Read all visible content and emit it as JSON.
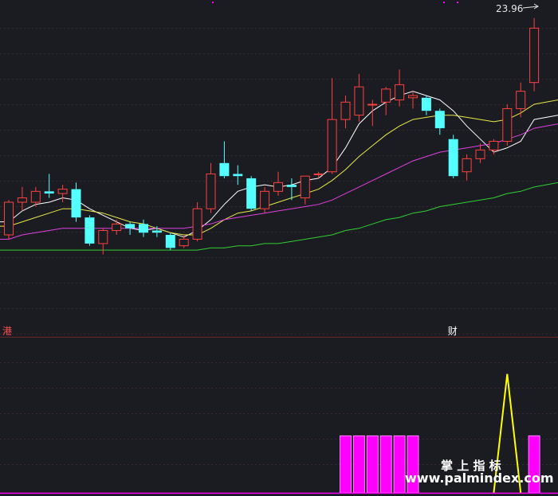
{
  "chart_data": [
    {
      "type": "candlestick",
      "title": "",
      "last_price_label": "23.96",
      "ylim": [
        9.5,
        24.5
      ],
      "event_markers": [
        {
          "text": "港",
          "x": 1
        },
        {
          "text": "财",
          "x": 34
        }
      ],
      "candles": [
        {
          "x": 1,
          "open": 14.0,
          "high": 15.6,
          "low": 13.8,
          "close": 15.5
        },
        {
          "x": 2,
          "open": 15.5,
          "high": 16.2,
          "low": 15.1,
          "close": 15.7
        },
        {
          "x": 3,
          "open": 15.5,
          "high": 16.2,
          "low": 15.3,
          "close": 16.0
        },
        {
          "x": 4,
          "open": 16.0,
          "high": 16.8,
          "low": 15.7,
          "close": 15.9
        },
        {
          "x": 5,
          "open": 15.9,
          "high": 16.3,
          "low": 15.5,
          "close": 16.1
        },
        {
          "x": 6,
          "open": 16.1,
          "high": 16.4,
          "low": 14.6,
          "close": 14.8
        },
        {
          "x": 7,
          "open": 14.8,
          "high": 14.9,
          "low": 13.5,
          "close": 13.6
        },
        {
          "x": 8,
          "open": 13.6,
          "high": 14.3,
          "low": 13.1,
          "close": 14.2
        },
        {
          "x": 9,
          "open": 14.2,
          "high": 14.7,
          "low": 14.0,
          "close": 14.5
        },
        {
          "x": 10,
          "open": 14.5,
          "high": 14.6,
          "low": 14.0,
          "close": 14.3
        },
        {
          "x": 11,
          "open": 14.5,
          "high": 14.7,
          "low": 13.9,
          "close": 14.1
        },
        {
          "x": 12,
          "open": 14.2,
          "high": 14.4,
          "low": 13.9,
          "close": 14.1
        },
        {
          "x": 13,
          "open": 14.0,
          "high": 14.1,
          "low": 13.3,
          "close": 13.4
        },
        {
          "x": 14,
          "open": 13.5,
          "high": 14.0,
          "low": 13.4,
          "close": 13.8
        },
        {
          "x": 15,
          "open": 13.8,
          "high": 15.5,
          "low": 13.7,
          "close": 15.2
        },
        {
          "x": 16,
          "open": 15.2,
          "high": 17.3,
          "low": 15.0,
          "close": 16.8
        },
        {
          "x": 17,
          "open": 17.3,
          "high": 18.3,
          "low": 16.6,
          "close": 16.7
        },
        {
          "x": 18,
          "open": 16.8,
          "high": 17.2,
          "low": 16.3,
          "close": 16.7
        },
        {
          "x": 19,
          "open": 16.6,
          "high": 16.7,
          "low": 15.1,
          "close": 15.2
        },
        {
          "x": 20,
          "open": 15.2,
          "high": 16.2,
          "low": 15.0,
          "close": 16.0
        },
        {
          "x": 21,
          "open": 16.0,
          "high": 16.9,
          "low": 15.8,
          "close": 16.4
        },
        {
          "x": 22,
          "open": 16.3,
          "high": 16.6,
          "low": 15.6,
          "close": 16.2
        },
        {
          "x": 23,
          "open": 15.7,
          "high": 16.7,
          "low": 15.4,
          "close": 16.7
        },
        {
          "x": 24,
          "open": 16.8,
          "high": 16.9,
          "low": 16.6,
          "close": 16.8
        },
        {
          "x": 25,
          "open": 16.9,
          "high": 21.2,
          "low": 16.8,
          "close": 19.3
        },
        {
          "x": 26,
          "open": 19.3,
          "high": 20.4,
          "low": 18.9,
          "close": 20.1
        },
        {
          "x": 27,
          "open": 19.5,
          "high": 21.4,
          "low": 19.2,
          "close": 20.8
        },
        {
          "x": 28,
          "open": 20.0,
          "high": 20.2,
          "low": 19.0,
          "close": 20.0
        },
        {
          "x": 29,
          "open": 20.1,
          "high": 20.8,
          "low": 19.5,
          "close": 20.7
        },
        {
          "x": 30,
          "open": 20.2,
          "high": 21.6,
          "low": 19.9,
          "close": 20.9
        },
        {
          "x": 31,
          "open": 20.3,
          "high": 20.6,
          "low": 19.8,
          "close": 20.4
        },
        {
          "x": 32,
          "open": 20.3,
          "high": 20.4,
          "low": 19.5,
          "close": 19.7
        },
        {
          "x": 33,
          "open": 19.7,
          "high": 19.8,
          "low": 18.6,
          "close": 18.9
        },
        {
          "x": 34,
          "open": 18.4,
          "high": 18.6,
          "low": 16.6,
          "close": 16.7
        },
        {
          "x": 35,
          "open": 16.9,
          "high": 17.7,
          "low": 16.5,
          "close": 17.5
        },
        {
          "x": 36,
          "open": 17.5,
          "high": 18.2,
          "low": 17.3,
          "close": 17.9
        },
        {
          "x": 37,
          "open": 17.9,
          "high": 18.4,
          "low": 17.7,
          "close": 18.3
        },
        {
          "x": 38,
          "open": 18.3,
          "high": 20.0,
          "low": 18.1,
          "close": 19.8
        },
        {
          "x": 39,
          "open": 19.8,
          "high": 21.0,
          "low": 19.4,
          "close": 20.6
        },
        {
          "x": 40,
          "open": 21.0,
          "high": 23.96,
          "low": 20.6,
          "close": 23.5
        }
      ],
      "moving_averages": [
        {
          "color": "#ffffff",
          "values": [
            14.6,
            15.1,
            15.4,
            15.5,
            15.7,
            15.6,
            15.2,
            14.9,
            14.6,
            14.3,
            14.2,
            14.3,
            14.1,
            13.9,
            14.2,
            14.7,
            15.4,
            16.0,
            16.2,
            16.3,
            16.2,
            16.3,
            16.5,
            16.6,
            17.1,
            18.0,
            19.1,
            19.7,
            20.1,
            20.4,
            20.6,
            20.4,
            20.2,
            19.7,
            19.0,
            18.4,
            17.8,
            18.0,
            18.3,
            19.3
          ]
        },
        {
          "color": "#e8e84a",
          "values": [
            14.4,
            14.6,
            14.8,
            15.0,
            15.2,
            15.2,
            15.1,
            15.0,
            14.8,
            14.6,
            14.5,
            14.3,
            14.1,
            14.0,
            14.0,
            14.3,
            14.7,
            15.0,
            15.1,
            15.3,
            15.5,
            15.7,
            15.9,
            16.1,
            16.5,
            17.0,
            17.6,
            18.1,
            18.6,
            19.0,
            19.3,
            19.4,
            19.5,
            19.5,
            19.4,
            19.3,
            19.2,
            19.3,
            19.6,
            20.0
          ]
        },
        {
          "color": "#e040e0",
          "values": [
            13.8,
            14.0,
            14.1,
            14.2,
            14.3,
            14.3,
            14.3,
            14.3,
            14.3,
            14.3,
            14.3,
            14.3,
            14.3,
            14.3,
            14.4,
            14.5,
            14.7,
            14.8,
            14.9,
            15.0,
            15.1,
            15.2,
            15.3,
            15.4,
            15.6,
            15.9,
            16.2,
            16.5,
            16.8,
            17.1,
            17.4,
            17.6,
            17.8,
            17.9,
            18.0,
            18.1,
            18.2,
            18.4,
            18.6,
            18.9
          ]
        },
        {
          "color": "#30d030",
          "values": [
            13.3,
            13.3,
            13.3,
            13.3,
            13.3,
            13.3,
            13.3,
            13.3,
            13.3,
            13.3,
            13.3,
            13.3,
            13.3,
            13.3,
            13.3,
            13.4,
            13.4,
            13.5,
            13.5,
            13.6,
            13.6,
            13.7,
            13.8,
            13.9,
            14.0,
            14.2,
            14.3,
            14.5,
            14.7,
            14.8,
            15.0,
            15.1,
            15.3,
            15.4,
            15.5,
            15.6,
            15.7,
            15.9,
            16.0,
            16.2
          ]
        }
      ]
    },
    {
      "type": "indicator",
      "ylim": [
        0,
        1.2
      ],
      "bars": [
        {
          "x": 26,
          "value": 0.48
        },
        {
          "x": 27,
          "value": 0.48
        },
        {
          "x": 28,
          "value": 0.48
        },
        {
          "x": 29,
          "value": 0.48
        },
        {
          "x": 30,
          "value": 0.48
        },
        {
          "x": 31,
          "value": 0.48
        },
        {
          "x": 40,
          "value": 0.48
        }
      ],
      "line": {
        "color": "#ffff00",
        "points": [
          [
            37,
            0
          ],
          [
            38,
            1.0
          ],
          [
            39,
            0
          ]
        ]
      },
      "watermark": {
        "title": "掌 上 指 标",
        "url": "www.palmindex.com"
      }
    }
  ]
}
